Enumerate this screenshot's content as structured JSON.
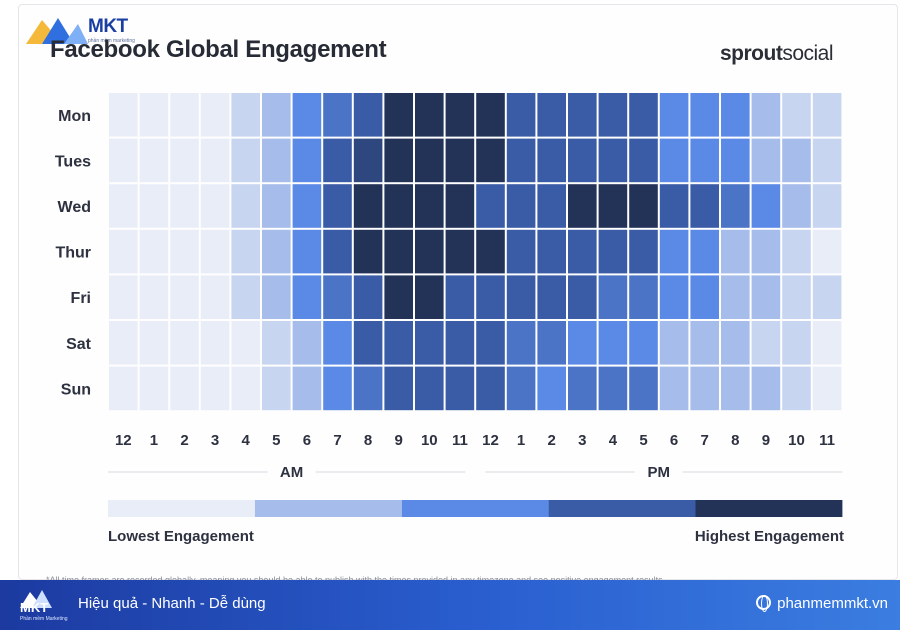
{
  "header": {
    "logo_text": "MKT",
    "logo_sub": "phần mềm marketing",
    "brand_bold": "sprout",
    "brand_light": "social"
  },
  "colors": {
    "level_1": "#e9edf8",
    "level_2": "#a6bcea",
    "level_3": "#5b89e6",
    "level_4": "#3a5ca6",
    "level_5": "#233257"
  },
  "chart_data": {
    "type": "heatmap",
    "title": "Facebook Global Engagement",
    "rows": [
      "Mon",
      "Tues",
      "Wed",
      "Thur",
      "Fri",
      "Sat",
      "Sun"
    ],
    "columns": [
      "12",
      "1",
      "2",
      "3",
      "4",
      "5",
      "6",
      "7",
      "8",
      "9",
      "10",
      "11",
      "12",
      "1",
      "2",
      "3",
      "4",
      "5",
      "6",
      "7",
      "8",
      "9",
      "10",
      "11"
    ],
    "period_labels": [
      "AM",
      "PM"
    ],
    "scale_min": 1,
    "scale_max": 5,
    "values": [
      [
        1,
        1,
        1,
        1,
        1.5,
        2,
        3,
        3.5,
        4,
        5,
        5,
        5,
        5,
        4,
        4,
        4,
        4,
        4,
        3,
        3,
        3,
        2,
        1.5,
        1.5
      ],
      [
        1,
        1,
        1,
        1,
        1.5,
        2,
        3,
        4,
        4.5,
        5,
        5,
        5,
        5,
        4,
        4,
        4,
        4,
        4,
        3,
        3,
        3,
        2,
        2,
        1.5
      ],
      [
        1,
        1,
        1,
        1,
        1.5,
        2,
        3,
        4,
        5,
        5,
        5,
        5,
        4,
        4,
        4,
        5,
        5,
        5,
        4,
        4,
        3.5,
        3,
        2,
        1.5
      ],
      [
        1,
        1,
        1,
        1,
        1.5,
        2,
        3,
        4,
        5,
        5,
        5,
        5,
        5,
        4,
        4,
        4,
        4,
        4,
        3,
        3,
        2,
        2,
        1.5,
        1
      ],
      [
        1,
        1,
        1,
        1,
        1.5,
        2,
        3,
        3.5,
        4,
        5,
        5,
        4,
        4,
        4,
        4,
        4,
        3.5,
        3.5,
        3,
        3,
        2,
        2,
        1.5,
        1.5
      ],
      [
        1,
        1,
        1,
        1,
        1,
        1.5,
        2,
        3,
        4,
        4,
        4,
        4,
        4,
        3.5,
        3.5,
        3,
        3,
        3,
        2,
        2,
        2,
        1.5,
        1.5,
        1
      ],
      [
        1,
        1,
        1,
        1,
        1,
        1.5,
        2,
        3,
        3.5,
        4,
        4,
        4,
        4,
        3.5,
        3,
        3.5,
        3.5,
        3.5,
        2,
        2,
        2,
        2,
        1.5,
        1
      ]
    ],
    "legend": {
      "low_label": "Lowest Engagement",
      "high_label": "Highest Engagement",
      "colors": [
        "#e9edf8",
        "#a6bcea",
        "#5b89e6",
        "#3a5ca6",
        "#233257"
      ]
    }
  },
  "footnote": "*All time frames are recorded globally, meaning you should be able to publish with the times provided in any timezone and see positive engagement results.",
  "footer": {
    "logo_text": "MKT",
    "logo_sub": "Phần mềm Marketing",
    "slogan": "Hiệu quả - Nhanh  - Dễ dùng",
    "website": "phanmemmkt.vn"
  }
}
